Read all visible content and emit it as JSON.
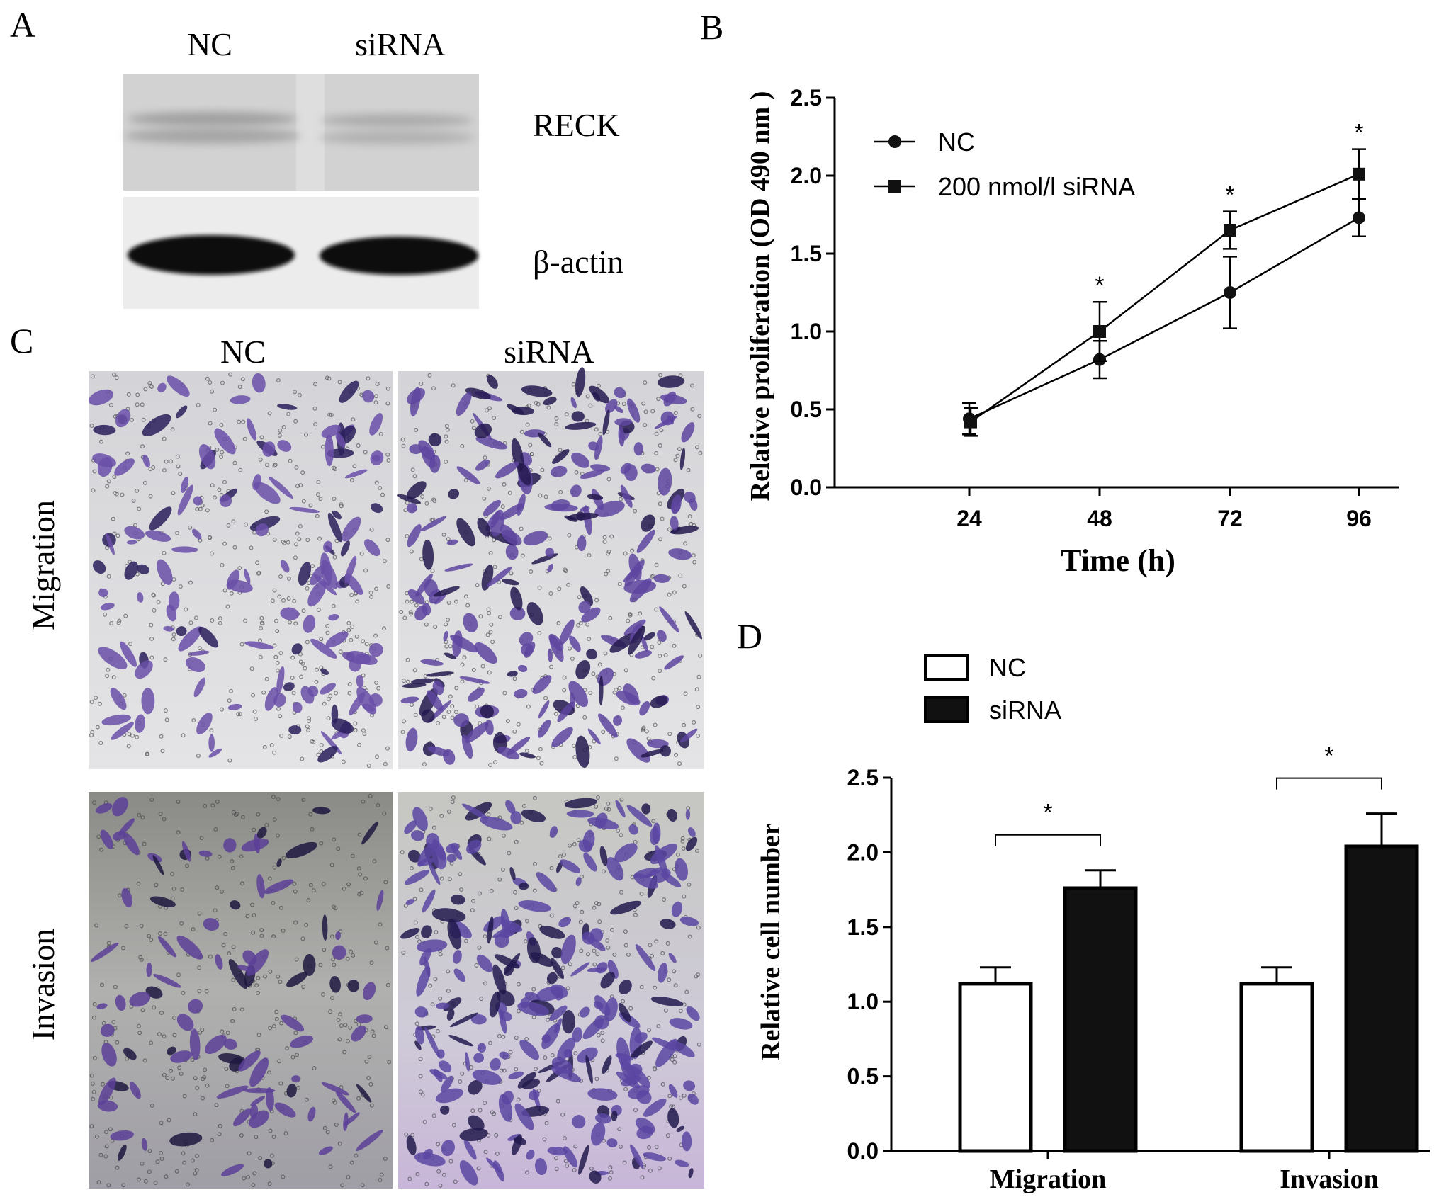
{
  "panels": {
    "a": {
      "letter": "A",
      "lanes": [
        "NC",
        "siRNA"
      ],
      "bands": [
        "RECK",
        "β-actin"
      ]
    },
    "b": {
      "letter": "B"
    },
    "c": {
      "letter": "C",
      "columns": [
        "NC",
        "siRNA"
      ],
      "rows": [
        "Migration",
        "Invasion"
      ]
    },
    "d": {
      "letter": "D"
    }
  },
  "chart_data": [
    {
      "id": "B",
      "type": "line",
      "title": "",
      "xlabel": "Time (h)",
      "ylabel": "Relative proliferation (OD 490 nm )",
      "x": [
        24,
        48,
        72,
        96
      ],
      "x_ticks": [
        "24",
        "48",
        "72",
        "96"
      ],
      "ylim": [
        0,
        2.5
      ],
      "y_ticks": [
        "0.0",
        "0.5",
        "1.0",
        "1.5",
        "2.0",
        "2.5"
      ],
      "grid": false,
      "legend": "top-left",
      "series": [
        {
          "name": "NC",
          "marker": "circle",
          "values": [
            0.44,
            0.82,
            1.25,
            1.73
          ],
          "errors": [
            0.1,
            0.12,
            0.23,
            0.12
          ]
        },
        {
          "name": "200 nmol/l  siRNA",
          "marker": "square",
          "values": [
            0.42,
            1.0,
            1.65,
            2.01
          ],
          "errors": [
            0.09,
            0.19,
            0.12,
            0.16
          ]
        }
      ],
      "significance": [
        "",
        "*",
        "*",
        "*"
      ]
    },
    {
      "id": "D",
      "type": "bar",
      "title": "",
      "xlabel": "",
      "ylabel": "Relative cell number",
      "categories": [
        "Migration",
        "Invasion"
      ],
      "ylim": [
        0,
        2.5
      ],
      "y_ticks": [
        "0.0",
        "0.5",
        "1.0",
        "1.5",
        "2.0",
        "2.5"
      ],
      "grid": false,
      "legend": "top-left",
      "series": [
        {
          "name": "NC",
          "color": "#ffffff",
          "values": [
            1.12,
            1.12
          ],
          "errors": [
            0.11,
            0.11
          ]
        },
        {
          "name": "siRNA",
          "color": "#111111",
          "values": [
            1.76,
            2.04
          ],
          "errors": [
            0.12,
            0.22
          ]
        }
      ],
      "significance": [
        "*",
        "*"
      ]
    }
  ]
}
